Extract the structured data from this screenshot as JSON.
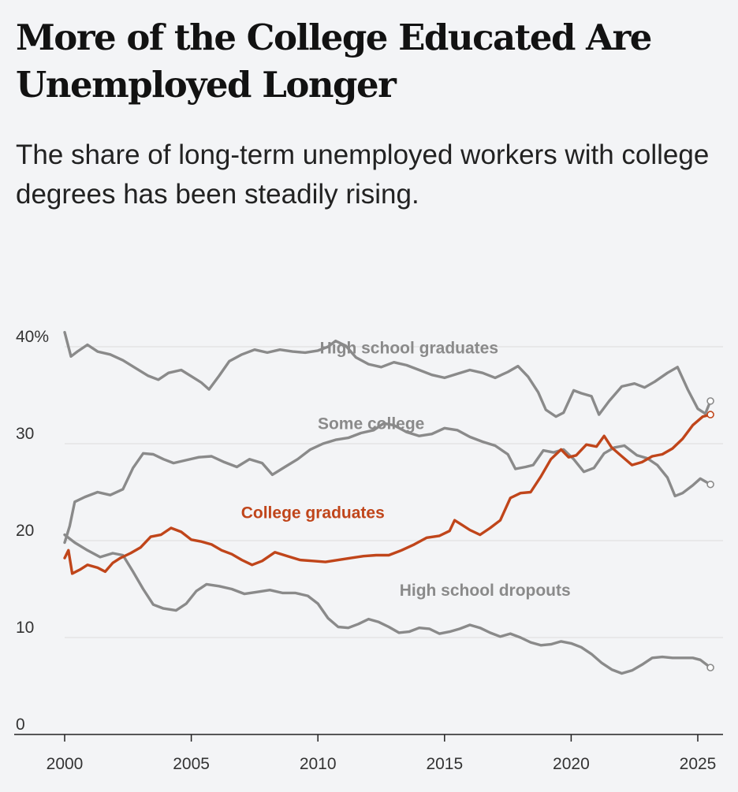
{
  "headline": "More of the College Educated Are Unemployed Longer",
  "subhead": "The share of long-term unemployed workers with college degrees has been steadily rising.",
  "colors": {
    "highlight": "#c0451a",
    "muted": "#8a8a8a",
    "grid": "#dcdcdc",
    "axis": "#222222"
  },
  "chart_data": {
    "type": "line",
    "title": "More of the College Educated Are Unemployed Longer",
    "subtitle": "The share of long-term unemployed workers with college degrees has been steadily rising.",
    "xlabel": "",
    "ylabel": "",
    "xlim": [
      2000,
      2025.7
    ],
    "ylim": [
      0,
      40
    ],
    "grid": true,
    "x_ticks": [
      2000,
      2005,
      2010,
      2015,
      2020,
      2025
    ],
    "x_tick_labels": [
      "2000",
      "2005",
      "2010",
      "2015",
      "2020",
      "2025"
    ],
    "y_ticks": [
      0,
      10,
      20,
      30,
      40
    ],
    "y_tick_labels": [
      "0",
      "10",
      "20",
      "30",
      "40%"
    ],
    "series": [
      {
        "name": "High school graduates",
        "highlight": false,
        "label_x": 2013.6,
        "label_y": 39.3,
        "points": [
          [
            2000,
            41.5
          ],
          [
            2000.25,
            39.0
          ],
          [
            2000.5,
            39.5
          ],
          [
            2000.9,
            40.2
          ],
          [
            2001.3,
            39.5
          ],
          [
            2001.8,
            39.2
          ],
          [
            2002.3,
            38.6
          ],
          [
            2002.8,
            37.8
          ],
          [
            2003.3,
            37.0
          ],
          [
            2003.7,
            36.6
          ],
          [
            2004.1,
            37.3
          ],
          [
            2004.6,
            37.6
          ],
          [
            2005.1,
            36.8
          ],
          [
            2005.4,
            36.3
          ],
          [
            2005.7,
            35.6
          ],
          [
            2006.1,
            37.0
          ],
          [
            2006.5,
            38.5
          ],
          [
            2007.0,
            39.2
          ],
          [
            2007.5,
            39.7
          ],
          [
            2008.0,
            39.4
          ],
          [
            2008.5,
            39.7
          ],
          [
            2009.0,
            39.5
          ],
          [
            2009.5,
            39.4
          ],
          [
            2010.0,
            39.6
          ],
          [
            2010.4,
            40.0
          ],
          [
            2010.7,
            40.6
          ],
          [
            2011.1,
            40.1
          ],
          [
            2011.5,
            38.9
          ],
          [
            2012.0,
            38.2
          ],
          [
            2012.5,
            37.9
          ],
          [
            2013.0,
            38.4
          ],
          [
            2013.5,
            38.1
          ],
          [
            2014.0,
            37.6
          ],
          [
            2014.5,
            37.1
          ],
          [
            2015.0,
            36.8
          ],
          [
            2015.5,
            37.2
          ],
          [
            2016.0,
            37.6
          ],
          [
            2016.5,
            37.3
          ],
          [
            2017.0,
            36.8
          ],
          [
            2017.5,
            37.4
          ],
          [
            2017.9,
            38.0
          ],
          [
            2018.3,
            36.9
          ],
          [
            2018.7,
            35.3
          ],
          [
            2019.0,
            33.5
          ],
          [
            2019.4,
            32.8
          ],
          [
            2019.7,
            33.2
          ],
          [
            2020.1,
            35.5
          ],
          [
            2020.4,
            35.2
          ],
          [
            2020.8,
            34.9
          ],
          [
            2021.1,
            33.0
          ],
          [
            2021.5,
            34.4
          ],
          [
            2022.0,
            35.9
          ],
          [
            2022.5,
            36.2
          ],
          [
            2022.9,
            35.8
          ],
          [
            2023.3,
            36.4
          ],
          [
            2023.8,
            37.3
          ],
          [
            2024.2,
            37.9
          ],
          [
            2024.6,
            35.6
          ],
          [
            2025.0,
            33.6
          ],
          [
            2025.3,
            33.1
          ],
          [
            2025.5,
            34.4
          ]
        ],
        "end_marker": true
      },
      {
        "name": "Some college",
        "highlight": false,
        "label_x": 2012.1,
        "label_y": 31.5,
        "points": [
          [
            2000,
            19.8
          ],
          [
            2000.2,
            21.5
          ],
          [
            2000.4,
            24.0
          ],
          [
            2000.8,
            24.5
          ],
          [
            2001.3,
            25.0
          ],
          [
            2001.8,
            24.7
          ],
          [
            2002.3,
            25.3
          ],
          [
            2002.7,
            27.5
          ],
          [
            2003.1,
            29.0
          ],
          [
            2003.5,
            28.9
          ],
          [
            2003.9,
            28.4
          ],
          [
            2004.3,
            28.0
          ],
          [
            2004.8,
            28.3
          ],
          [
            2005.3,
            28.6
          ],
          [
            2005.8,
            28.7
          ],
          [
            2006.3,
            28.1
          ],
          [
            2006.8,
            27.6
          ],
          [
            2007.3,
            28.4
          ],
          [
            2007.8,
            28.0
          ],
          [
            2008.2,
            26.8
          ],
          [
            2008.7,
            27.6
          ],
          [
            2009.2,
            28.4
          ],
          [
            2009.7,
            29.4
          ],
          [
            2010.2,
            30.0
          ],
          [
            2010.7,
            30.4
          ],
          [
            2011.2,
            30.6
          ],
          [
            2011.7,
            31.1
          ],
          [
            2012.2,
            31.4
          ],
          [
            2012.6,
            32.1
          ],
          [
            2013.0,
            31.9
          ],
          [
            2013.5,
            31.2
          ],
          [
            2014.0,
            30.8
          ],
          [
            2014.5,
            31.0
          ],
          [
            2015.0,
            31.6
          ],
          [
            2015.5,
            31.4
          ],
          [
            2016.0,
            30.7
          ],
          [
            2016.5,
            30.2
          ],
          [
            2017.0,
            29.8
          ],
          [
            2017.5,
            28.9
          ],
          [
            2017.8,
            27.4
          ],
          [
            2018.2,
            27.6
          ],
          [
            2018.5,
            27.8
          ],
          [
            2018.9,
            29.3
          ],
          [
            2019.3,
            29.1
          ],
          [
            2019.7,
            29.4
          ],
          [
            2020.1,
            28.4
          ],
          [
            2020.5,
            27.1
          ],
          [
            2020.9,
            27.5
          ],
          [
            2021.3,
            29.0
          ],
          [
            2021.7,
            29.6
          ],
          [
            2022.1,
            29.8
          ],
          [
            2022.6,
            28.8
          ],
          [
            2023.0,
            28.5
          ],
          [
            2023.4,
            27.8
          ],
          [
            2023.8,
            26.5
          ],
          [
            2024.1,
            24.6
          ],
          [
            2024.4,
            24.9
          ],
          [
            2024.8,
            25.7
          ],
          [
            2025.1,
            26.4
          ],
          [
            2025.5,
            25.8
          ]
        ],
        "end_marker": true
      },
      {
        "name": "High school dropouts",
        "highlight": false,
        "label_x": 2016.6,
        "label_y": 14.3,
        "points": [
          [
            2000,
            20.6
          ],
          [
            2000.4,
            19.8
          ],
          [
            2000.9,
            19.0
          ],
          [
            2001.4,
            18.3
          ],
          [
            2001.9,
            18.7
          ],
          [
            2002.3,
            18.5
          ],
          [
            2002.7,
            16.8
          ],
          [
            2003.1,
            15.0
          ],
          [
            2003.5,
            13.4
          ],
          [
            2003.9,
            13.0
          ],
          [
            2004.4,
            12.8
          ],
          [
            2004.8,
            13.5
          ],
          [
            2005.2,
            14.8
          ],
          [
            2005.6,
            15.5
          ],
          [
            2006.1,
            15.3
          ],
          [
            2006.6,
            15.0
          ],
          [
            2007.1,
            14.5
          ],
          [
            2007.6,
            14.7
          ],
          [
            2008.1,
            14.9
          ],
          [
            2008.6,
            14.6
          ],
          [
            2009.1,
            14.6
          ],
          [
            2009.6,
            14.3
          ],
          [
            2010.0,
            13.5
          ],
          [
            2010.4,
            12.0
          ],
          [
            2010.8,
            11.1
          ],
          [
            2011.2,
            11.0
          ],
          [
            2011.6,
            11.4
          ],
          [
            2012.0,
            11.9
          ],
          [
            2012.4,
            11.6
          ],
          [
            2012.8,
            11.1
          ],
          [
            2013.2,
            10.5
          ],
          [
            2013.6,
            10.6
          ],
          [
            2014.0,
            11.0
          ],
          [
            2014.4,
            10.9
          ],
          [
            2014.8,
            10.4
          ],
          [
            2015.2,
            10.6
          ],
          [
            2015.6,
            10.9
          ],
          [
            2016.0,
            11.3
          ],
          [
            2016.4,
            11.0
          ],
          [
            2016.8,
            10.5
          ],
          [
            2017.2,
            10.1
          ],
          [
            2017.6,
            10.4
          ],
          [
            2018.0,
            10.0
          ],
          [
            2018.4,
            9.5
          ],
          [
            2018.8,
            9.2
          ],
          [
            2019.2,
            9.3
          ],
          [
            2019.6,
            9.6
          ],
          [
            2020.0,
            9.4
          ],
          [
            2020.4,
            9.0
          ],
          [
            2020.8,
            8.3
          ],
          [
            2021.2,
            7.4
          ],
          [
            2021.6,
            6.7
          ],
          [
            2022.0,
            6.3
          ],
          [
            2022.4,
            6.6
          ],
          [
            2022.8,
            7.2
          ],
          [
            2023.2,
            7.9
          ],
          [
            2023.6,
            8.0
          ],
          [
            2024.0,
            7.9
          ],
          [
            2024.4,
            7.9
          ],
          [
            2024.8,
            7.9
          ],
          [
            2025.1,
            7.7
          ],
          [
            2025.5,
            6.9
          ]
        ],
        "end_marker": true
      },
      {
        "name": "College graduates",
        "highlight": true,
        "label_x": 2009.8,
        "label_y": 22.3,
        "points": [
          [
            2000,
            18.2
          ],
          [
            2000.15,
            19.0
          ],
          [
            2000.3,
            16.6
          ],
          [
            2000.6,
            17.0
          ],
          [
            2000.9,
            17.5
          ],
          [
            2001.3,
            17.2
          ],
          [
            2001.6,
            16.8
          ],
          [
            2001.9,
            17.7
          ],
          [
            2002.2,
            18.2
          ],
          [
            2002.6,
            18.7
          ],
          [
            2003.0,
            19.3
          ],
          [
            2003.4,
            20.4
          ],
          [
            2003.8,
            20.6
          ],
          [
            2004.2,
            21.3
          ],
          [
            2004.6,
            20.9
          ],
          [
            2005.0,
            20.1
          ],
          [
            2005.4,
            19.9
          ],
          [
            2005.8,
            19.6
          ],
          [
            2006.2,
            19.0
          ],
          [
            2006.6,
            18.6
          ],
          [
            2007.0,
            18.0
          ],
          [
            2007.4,
            17.5
          ],
          [
            2007.8,
            17.9
          ],
          [
            2008.3,
            18.8
          ],
          [
            2008.8,
            18.4
          ],
          [
            2009.3,
            18.0
          ],
          [
            2009.8,
            17.9
          ],
          [
            2010.3,
            17.8
          ],
          [
            2010.8,
            18.0
          ],
          [
            2011.3,
            18.2
          ],
          [
            2011.8,
            18.4
          ],
          [
            2012.3,
            18.5
          ],
          [
            2012.8,
            18.5
          ],
          [
            2013.3,
            19.0
          ],
          [
            2013.8,
            19.6
          ],
          [
            2014.3,
            20.3
          ],
          [
            2014.8,
            20.5
          ],
          [
            2015.2,
            21.0
          ],
          [
            2015.4,
            22.1
          ],
          [
            2015.7,
            21.6
          ],
          [
            2016.0,
            21.1
          ],
          [
            2016.4,
            20.6
          ],
          [
            2016.8,
            21.3
          ],
          [
            2017.2,
            22.1
          ],
          [
            2017.6,
            24.4
          ],
          [
            2018.0,
            24.9
          ],
          [
            2018.4,
            25.0
          ],
          [
            2018.8,
            26.6
          ],
          [
            2019.2,
            28.4
          ],
          [
            2019.6,
            29.4
          ],
          [
            2019.9,
            28.6
          ],
          [
            2020.2,
            28.8
          ],
          [
            2020.6,
            29.9
          ],
          [
            2021.0,
            29.7
          ],
          [
            2021.3,
            30.8
          ],
          [
            2021.6,
            29.6
          ],
          [
            2022.0,
            28.7
          ],
          [
            2022.4,
            27.8
          ],
          [
            2022.8,
            28.1
          ],
          [
            2023.2,
            28.7
          ],
          [
            2023.6,
            28.9
          ],
          [
            2024.0,
            29.5
          ],
          [
            2024.4,
            30.5
          ],
          [
            2024.8,
            31.9
          ],
          [
            2025.2,
            32.8
          ],
          [
            2025.5,
            33.0
          ]
        ],
        "end_marker": true
      }
    ]
  }
}
